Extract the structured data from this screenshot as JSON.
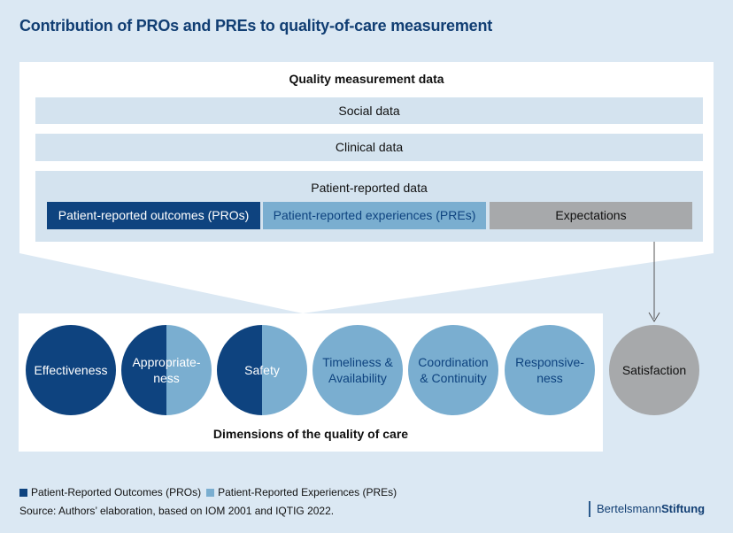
{
  "title": "Contribution of PROs and PREs to quality-of-care measurement",
  "quality_measurement": {
    "title": "Quality measurement data",
    "social": "Social data",
    "clinical": "Clinical data",
    "patient_reported": "Patient-reported data",
    "pros": "Patient-reported outcomes (PROs)",
    "pres": "Patient-reported experiences (PREs)",
    "expectations": "Expectations"
  },
  "dimensions": {
    "label": "Dimensions of the quality of care",
    "effectiveness": "Effectiveness",
    "appropriateness_1": "Appropriate-",
    "appropriateness_2": "ness",
    "safety": "Safety",
    "timeliness_1": "Timeliness &",
    "timeliness_2": "Availability",
    "coordination_1": "Coordination",
    "coordination_2": "& Continuity",
    "responsiveness_1": "Responsive-",
    "responsiveness_2": "ness",
    "satisfaction": "Satisfaction"
  },
  "legend": {
    "pros": "Patient-Reported Outcomes (PROs)",
    "pres": "Patient-Reported Experiences (PREs)"
  },
  "source": "Source: Authors’ elaboration, based on IOM 2001 and IQTIG 2022.",
  "brand": {
    "part1": "Bertelsmann",
    "part2": "Stiftung"
  },
  "colors": {
    "dark_blue": "#0e437f",
    "light_blue": "#7aaed0",
    "grey": "#a7a9ab",
    "band": "#d4e3ef",
    "background": "#dbe8f3"
  }
}
